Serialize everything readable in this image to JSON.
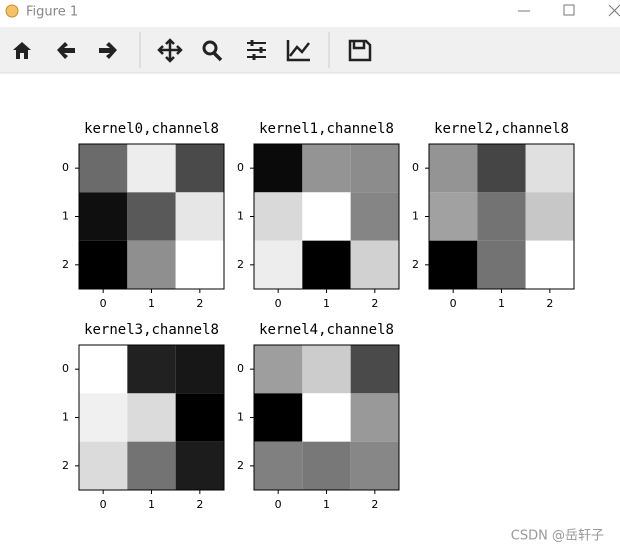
{
  "window_title": "Figure 1",
  "watermark": "CSDN @岳轩子",
  "chart_data": [
    {
      "type": "heatmap",
      "title": "kernel0,channel8",
      "cmap": "gray",
      "values": [
        [
          0.42,
          0.93,
          0.29
        ],
        [
          0.06,
          0.35,
          0.9
        ],
        [
          0,
          0.56,
          1
        ]
      ],
      "xlim": [
        -0.5,
        2.5
      ],
      "ylim": [
        2.5,
        -0.5
      ],
      "xticks": [
        0,
        1,
        2
      ],
      "yticks": [
        0,
        1,
        2
      ]
    },
    {
      "type": "heatmap",
      "title": "kernel1,channel8",
      "cmap": "gray",
      "values": [
        [
          0.04,
          0.58,
          0.55
        ],
        [
          0.85,
          1,
          0.52
        ],
        [
          0.93,
          0,
          0.82
        ]
      ],
      "xlim": [
        -0.5,
        2.5
      ],
      "ylim": [
        2.5,
        -0.5
      ],
      "xticks": [
        0,
        1,
        2
      ],
      "yticks": [
        0,
        1,
        2
      ]
    },
    {
      "type": "heatmap",
      "title": "kernel2,channel8",
      "cmap": "gray",
      "values": [
        [
          0.58,
          0.27,
          0.88
        ],
        [
          0.63,
          0.45,
          0.78
        ],
        [
          0,
          0.45,
          1
        ]
      ],
      "xlim": [
        -0.5,
        2.5
      ],
      "ylim": [
        2.5,
        -0.5
      ],
      "xticks": [
        0,
        1,
        2
      ],
      "yticks": [
        0,
        1,
        2
      ]
    },
    {
      "type": "heatmap",
      "title": "kernel3,channel8",
      "cmap": "gray",
      "values": [
        [
          1,
          0.13,
          0.09
        ],
        [
          0.94,
          0.86,
          0
        ],
        [
          0.86,
          0.45,
          0.11
        ]
      ],
      "xlim": [
        -0.5,
        2.5
      ],
      "ylim": [
        2.5,
        -0.5
      ],
      "xticks": [
        0,
        1,
        2
      ],
      "yticks": [
        0,
        1,
        2
      ]
    },
    {
      "type": "heatmap",
      "title": "kernel4,channel8",
      "cmap": "gray",
      "values": [
        [
          0.62,
          0.8,
          0.29
        ],
        [
          0,
          1,
          0.6
        ],
        [
          0.5,
          0.47,
          0.53
        ]
      ],
      "xlim": [
        -0.5,
        2.5
      ],
      "ylim": [
        2.5,
        -0.5
      ],
      "xticks": [
        0,
        1,
        2
      ],
      "yticks": [
        0,
        1,
        2
      ]
    }
  ]
}
